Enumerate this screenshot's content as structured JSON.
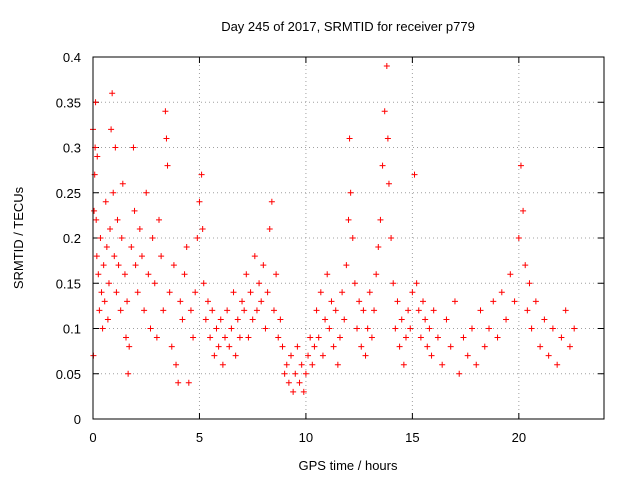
{
  "chart_data": {
    "type": "scatter",
    "title": "Day 245 of 2017, SRMTID for receiver p779",
    "xlabel": "GPS time / hours",
    "ylabel": "SRMTID / TECUs",
    "xlim": [
      0,
      24
    ],
    "ylim": [
      0,
      0.4
    ],
    "xticks": [
      0,
      5,
      10,
      15,
      20
    ],
    "yticks": [
      0,
      0.05,
      0.1,
      0.15,
      0.2,
      0.25,
      0.3,
      0.35,
      0.4
    ],
    "xtick_labels": [
      "0",
      "5",
      "10",
      "15",
      "20"
    ],
    "ytick_labels": [
      "0",
      "0.05",
      "0.1",
      "0.15",
      "0.2",
      "0.25",
      "0.3",
      "0.35",
      "0.4"
    ],
    "grid": true,
    "marker": "+",
    "color": "#ff0000",
    "series": [
      {
        "name": "SRMTID",
        "points": [
          [
            0.0,
            0.32
          ],
          [
            0.02,
            0.07
          ],
          [
            0.05,
            0.23
          ],
          [
            0.08,
            0.27
          ],
          [
            0.1,
            0.3
          ],
          [
            0.12,
            0.35
          ],
          [
            0.15,
            0.22
          ],
          [
            0.18,
            0.18
          ],
          [
            0.2,
            0.29
          ],
          [
            0.25,
            0.16
          ],
          [
            0.3,
            0.12
          ],
          [
            0.35,
            0.2
          ],
          [
            0.4,
            0.14
          ],
          [
            0.45,
            0.1
          ],
          [
            0.5,
            0.17
          ],
          [
            0.55,
            0.13
          ],
          [
            0.6,
            0.24
          ],
          [
            0.65,
            0.19
          ],
          [
            0.7,
            0.11
          ],
          [
            0.75,
            0.15
          ],
          [
            0.8,
            0.21
          ],
          [
            0.85,
            0.32
          ],
          [
            0.9,
            0.36
          ],
          [
            0.95,
            0.25
          ],
          [
            1.0,
            0.18
          ],
          [
            1.05,
            0.3
          ],
          [
            1.1,
            0.14
          ],
          [
            1.15,
            0.22
          ],
          [
            1.2,
            0.17
          ],
          [
            1.3,
            0.12
          ],
          [
            1.35,
            0.2
          ],
          [
            1.4,
            0.26
          ],
          [
            1.5,
            0.16
          ],
          [
            1.55,
            0.09
          ],
          [
            1.6,
            0.13
          ],
          [
            1.65,
            0.05
          ],
          [
            1.7,
            0.08
          ],
          [
            1.8,
            0.19
          ],
          [
            1.9,
            0.3
          ],
          [
            1.95,
            0.23
          ],
          [
            2.0,
            0.17
          ],
          [
            2.1,
            0.14
          ],
          [
            2.2,
            0.21
          ],
          [
            2.3,
            0.18
          ],
          [
            2.4,
            0.12
          ],
          [
            2.5,
            0.25
          ],
          [
            2.6,
            0.16
          ],
          [
            2.7,
            0.1
          ],
          [
            2.8,
            0.2
          ],
          [
            2.9,
            0.15
          ],
          [
            3.0,
            0.09
          ],
          [
            3.1,
            0.22
          ],
          [
            3.2,
            0.18
          ],
          [
            3.3,
            0.12
          ],
          [
            3.4,
            0.34
          ],
          [
            3.45,
            0.31
          ],
          [
            3.5,
            0.28
          ],
          [
            3.6,
            0.14
          ],
          [
            3.7,
            0.08
          ],
          [
            3.8,
            0.17
          ],
          [
            3.9,
            0.06
          ],
          [
            4.0,
            0.04
          ],
          [
            4.1,
            0.13
          ],
          [
            4.2,
            0.11
          ],
          [
            4.3,
            0.16
          ],
          [
            4.4,
            0.19
          ],
          [
            4.5,
            0.04
          ],
          [
            4.6,
            0.12
          ],
          [
            4.7,
            0.09
          ],
          [
            4.8,
            0.14
          ],
          [
            4.9,
            0.2
          ],
          [
            5.0,
            0.24
          ],
          [
            5.1,
            0.27
          ],
          [
            5.15,
            0.21
          ],
          [
            5.2,
            0.15
          ],
          [
            5.3,
            0.11
          ],
          [
            5.4,
            0.13
          ],
          [
            5.5,
            0.09
          ],
          [
            5.6,
            0.12
          ],
          [
            5.7,
            0.07
          ],
          [
            5.8,
            0.1
          ],
          [
            5.9,
            0.08
          ],
          [
            6.0,
            0.11
          ],
          [
            6.1,
            0.06
          ],
          [
            6.2,
            0.09
          ],
          [
            6.3,
            0.12
          ],
          [
            6.4,
            0.08
          ],
          [
            6.5,
            0.1
          ],
          [
            6.6,
            0.14
          ],
          [
            6.7,
            0.07
          ],
          [
            6.8,
            0.11
          ],
          [
            6.9,
            0.09
          ],
          [
            7.0,
            0.13
          ],
          [
            7.1,
            0.12
          ],
          [
            7.2,
            0.16
          ],
          [
            7.3,
            0.09
          ],
          [
            7.4,
            0.14
          ],
          [
            7.5,
            0.11
          ],
          [
            7.6,
            0.18
          ],
          [
            7.7,
            0.12
          ],
          [
            7.8,
            0.15
          ],
          [
            7.9,
            0.13
          ],
          [
            8.0,
            0.17
          ],
          [
            8.1,
            0.1
          ],
          [
            8.2,
            0.14
          ],
          [
            8.3,
            0.21
          ],
          [
            8.4,
            0.24
          ],
          [
            8.5,
            0.12
          ],
          [
            8.6,
            0.16
          ],
          [
            8.7,
            0.09
          ],
          [
            8.8,
            0.11
          ],
          [
            8.9,
            0.08
          ],
          [
            9.0,
            0.05
          ],
          [
            9.1,
            0.06
          ],
          [
            9.2,
            0.04
          ],
          [
            9.3,
            0.07
          ],
          [
            9.4,
            0.03
          ],
          [
            9.5,
            0.05
          ],
          [
            9.6,
            0.08
          ],
          [
            9.7,
            0.04
          ],
          [
            9.8,
            0.06
          ],
          [
            9.9,
            0.03
          ],
          [
            10.0,
            0.05
          ],
          [
            10.1,
            0.07
          ],
          [
            10.2,
            0.09
          ],
          [
            10.3,
            0.06
          ],
          [
            10.4,
            0.08
          ],
          [
            10.5,
            0.12
          ],
          [
            10.6,
            0.09
          ],
          [
            10.7,
            0.14
          ],
          [
            10.8,
            0.07
          ],
          [
            10.9,
            0.11
          ],
          [
            11.0,
            0.16
          ],
          [
            11.1,
            0.1
          ],
          [
            11.2,
            0.13
          ],
          [
            11.3,
            0.08
          ],
          [
            11.4,
            0.12
          ],
          [
            11.5,
            0.06
          ],
          [
            11.6,
            0.09
          ],
          [
            11.7,
            0.14
          ],
          [
            11.8,
            0.11
          ],
          [
            11.9,
            0.17
          ],
          [
            12.0,
            0.22
          ],
          [
            12.05,
            0.31
          ],
          [
            12.1,
            0.25
          ],
          [
            12.2,
            0.2
          ],
          [
            12.3,
            0.15
          ],
          [
            12.4,
            0.1
          ],
          [
            12.5,
            0.13
          ],
          [
            12.6,
            0.08
          ],
          [
            12.7,
            0.12
          ],
          [
            12.8,
            0.07
          ],
          [
            12.9,
            0.1
          ],
          [
            13.0,
            0.14
          ],
          [
            13.1,
            0.09
          ],
          [
            13.2,
            0.12
          ],
          [
            13.3,
            0.16
          ],
          [
            13.4,
            0.19
          ],
          [
            13.5,
            0.22
          ],
          [
            13.6,
            0.28
          ],
          [
            13.7,
            0.34
          ],
          [
            13.8,
            0.39
          ],
          [
            13.85,
            0.31
          ],
          [
            13.9,
            0.26
          ],
          [
            14.0,
            0.2
          ],
          [
            14.1,
            0.15
          ],
          [
            14.2,
            0.1
          ],
          [
            14.3,
            0.13
          ],
          [
            14.4,
            0.08
          ],
          [
            14.5,
            0.11
          ],
          [
            14.6,
            0.06
          ],
          [
            14.7,
            0.09
          ],
          [
            14.8,
            0.12
          ],
          [
            14.9,
            0.1
          ],
          [
            15.0,
            0.14
          ],
          [
            15.1,
            0.27
          ],
          [
            15.2,
            0.15
          ],
          [
            15.3,
            0.12
          ],
          [
            15.4,
            0.09
          ],
          [
            15.5,
            0.13
          ],
          [
            15.6,
            0.11
          ],
          [
            15.7,
            0.08
          ],
          [
            15.8,
            0.1
          ],
          [
            15.9,
            0.07
          ],
          [
            16.0,
            0.12
          ],
          [
            16.2,
            0.09
          ],
          [
            16.4,
            0.06
          ],
          [
            16.6,
            0.11
          ],
          [
            16.8,
            0.08
          ],
          [
            17.0,
            0.13
          ],
          [
            17.2,
            0.05
          ],
          [
            17.4,
            0.09
          ],
          [
            17.6,
            0.07
          ],
          [
            17.8,
            0.1
          ],
          [
            18.0,
            0.06
          ],
          [
            18.2,
            0.12
          ],
          [
            18.4,
            0.08
          ],
          [
            18.6,
            0.1
          ],
          [
            18.8,
            0.13
          ],
          [
            19.0,
            0.09
          ],
          [
            19.2,
            0.14
          ],
          [
            19.4,
            0.11
          ],
          [
            19.6,
            0.16
          ],
          [
            19.8,
            0.13
          ],
          [
            20.0,
            0.2
          ],
          [
            20.1,
            0.28
          ],
          [
            20.2,
            0.23
          ],
          [
            20.3,
            0.17
          ],
          [
            20.4,
            0.12
          ],
          [
            20.5,
            0.15
          ],
          [
            20.6,
            0.1
          ],
          [
            20.8,
            0.13
          ],
          [
            21.0,
            0.08
          ],
          [
            21.2,
            0.11
          ],
          [
            21.4,
            0.07
          ],
          [
            21.6,
            0.1
          ],
          [
            21.8,
            0.06
          ],
          [
            22.0,
            0.09
          ],
          [
            22.2,
            0.12
          ],
          [
            22.4,
            0.08
          ],
          [
            22.6,
            0.1
          ]
        ]
      }
    ]
  }
}
